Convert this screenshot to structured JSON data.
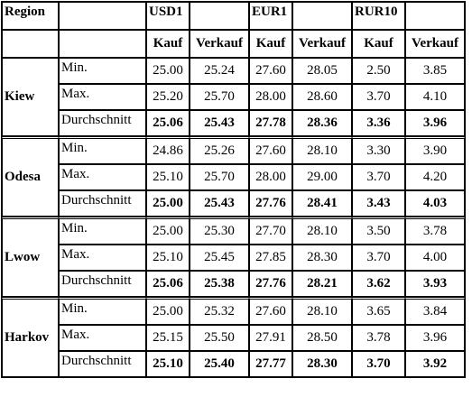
{
  "header": {
    "region": "Region",
    "currencies": [
      "USD1",
      "EUR1",
      "RUR10"
    ],
    "buy": "Kauf",
    "sell": "Verkauf"
  },
  "stat_labels": [
    "Min.",
    "Max.",
    "Durchschnitt"
  ],
  "regions": [
    {
      "name": "Kiew",
      "rows": [
        [
          "25.00",
          "25.24",
          "27.60",
          "28.05",
          "2.50",
          "3.85"
        ],
        [
          "25.20",
          "25.70",
          "28.00",
          "28.60",
          "3.70",
          "4.10"
        ],
        [
          "25.06",
          "25.43",
          "27.78",
          "28.36",
          "3.36",
          "3.96"
        ]
      ]
    },
    {
      "name": "Odesa",
      "rows": [
        [
          "24.86",
          "25.26",
          "27.60",
          "28.10",
          "3.30",
          "3.90"
        ],
        [
          "25.10",
          "25.70",
          "28.00",
          "29.00",
          "3.70",
          "4.20"
        ],
        [
          "25.00",
          "25.43",
          "27.76",
          "28.41",
          "3.43",
          "4.03"
        ]
      ]
    },
    {
      "name": "Lwow",
      "rows": [
        [
          "25.00",
          "25.30",
          "27.70",
          "28.10",
          "3.50",
          "3.78"
        ],
        [
          "25.10",
          "25.45",
          "27.85",
          "28.30",
          "3.70",
          "4.00"
        ],
        [
          "25.06",
          "25.38",
          "27.76",
          "28.21",
          "3.62",
          "3.93"
        ]
      ]
    },
    {
      "name": "Harkov",
      "rows": [
        [
          "25.00",
          "25.32",
          "27.60",
          "28.10",
          "3.65",
          "3.84"
        ],
        [
          "25.15",
          "25.50",
          "27.91",
          "28.50",
          "3.78",
          "3.96"
        ],
        [
          "25.10",
          "25.40",
          "27.77",
          "28.30",
          "3.70",
          "3.92"
        ]
      ]
    }
  ]
}
